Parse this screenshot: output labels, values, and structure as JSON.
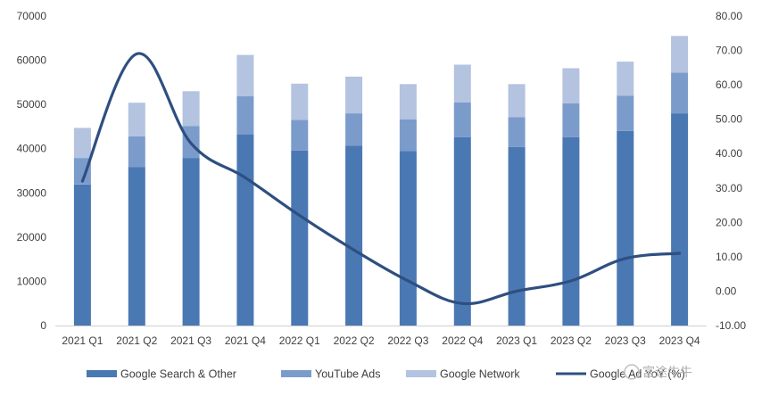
{
  "chart_data": {
    "type": "bar",
    "stacked": true,
    "categories": [
      "2021 Q1",
      "2021 Q2",
      "2021 Q3",
      "2021 Q4",
      "2022 Q1",
      "2022 Q2",
      "2022 Q3",
      "2022 Q4",
      "2023 Q1",
      "2023 Q2",
      "2023 Q3",
      "2023 Q4"
    ],
    "series": [
      {
        "name": "Google Search & Other",
        "type": "bar",
        "axis": "left",
        "values": [
          31900,
          35800,
          37900,
          43300,
          39600,
          40700,
          39500,
          42600,
          40400,
          42600,
          44000,
          48000
        ]
      },
      {
        "name": "YouTube Ads",
        "type": "bar",
        "axis": "left",
        "values": [
          6000,
          7000,
          7200,
          8600,
          6900,
          7300,
          7100,
          7900,
          6700,
          7700,
          8000,
          9200
        ]
      },
      {
        "name": "Google Network",
        "type": "bar",
        "axis": "left",
        "values": [
          6800,
          7600,
          7900,
          9300,
          8200,
          8300,
          8000,
          8500,
          7500,
          7900,
          7700,
          8300
        ]
      },
      {
        "name": "Google Ad YoY (%)",
        "type": "line",
        "axis": "right",
        "values": [
          32.0,
          69.0,
          43.0,
          33.0,
          22.0,
          12.0,
          3.0,
          -3.6,
          0.0,
          3.0,
          9.5,
          11.0
        ]
      }
    ],
    "colors": {
      "Google Search & Other": "#4a78b3",
      "YouTube Ads": "#7b9ccb",
      "Google Network": "#b3c3e0",
      "Google Ad YoY (%)": "#2e4f80"
    },
    "y_left": {
      "min": 0,
      "max": 70000,
      "ticks": [
        "0",
        "10000",
        "20000",
        "30000",
        "40000",
        "50000",
        "60000",
        "70000"
      ]
    },
    "y_right": {
      "min": -10,
      "max": 80,
      "ticks": [
        "-10.00",
        "0.00",
        "10.00",
        "20.00",
        "30.00",
        "40.00",
        "50.00",
        "60.00",
        "70.00",
        "80.00"
      ]
    },
    "title": "",
    "xlabel": "",
    "ylabel": "",
    "grid": false,
    "legend": "bottom",
    "watermark": "富途牛牛"
  }
}
